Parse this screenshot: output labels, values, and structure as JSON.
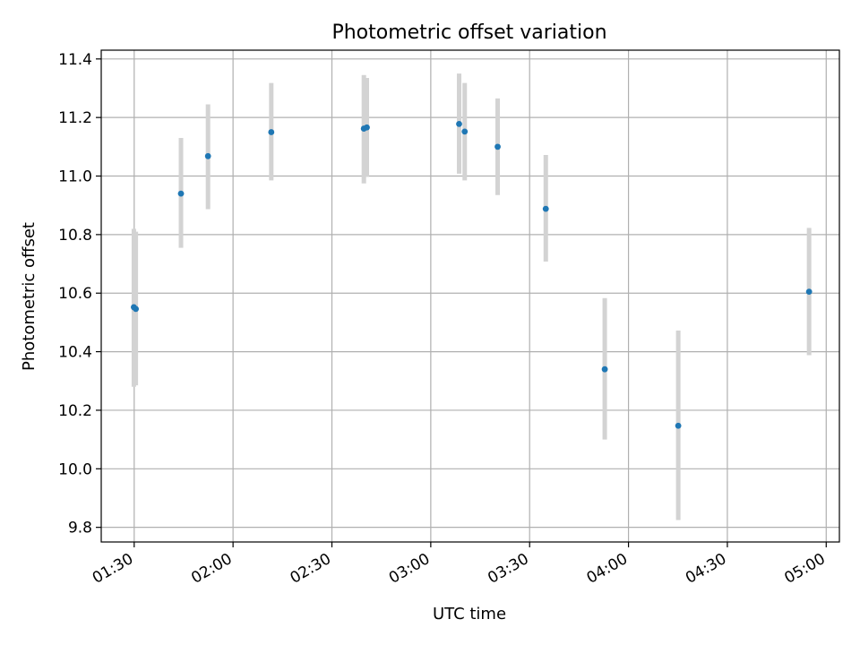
{
  "chart_data": {
    "type": "scatter",
    "title": "Photometric offset variation",
    "xlabel": "UTC time",
    "ylabel": "Photometric offset",
    "x_axis": {
      "kind": "time",
      "range": [
        "01:20",
        "05:04"
      ],
      "ticks": [
        "01:30",
        "02:00",
        "02:30",
        "03:00",
        "03:30",
        "04:00",
        "04:30",
        "05:00"
      ]
    },
    "y_axis": {
      "range": [
        9.75,
        11.43
      ],
      "ticks": [
        "9.8",
        "10.0",
        "10.2",
        "10.4",
        "10.6",
        "10.8",
        "11.0",
        "11.2",
        "11.4"
      ]
    },
    "grid": true,
    "series": [
      {
        "marker_color": "#1f77b4",
        "errorbar_color": "#d3d3d3",
        "points": [
          {
            "x": "01:29.9",
            "y": 10.552,
            "err_low": 10.28,
            "err_high": 10.82
          },
          {
            "x": "01:30.5",
            "y": 10.546,
            "err_low": 10.285,
            "err_high": 10.81
          },
          {
            "x": "01:44.2",
            "y": 10.94,
            "err_low": 10.755,
            "err_high": 11.13
          },
          {
            "x": "01:52.4",
            "y": 11.068,
            "err_low": 10.887,
            "err_high": 11.245
          },
          {
            "x": "02:11.6",
            "y": 11.15,
            "err_low": 10.985,
            "err_high": 11.318
          },
          {
            "x": "02:39.7",
            "y": 11.162,
            "err_low": 10.975,
            "err_high": 11.345
          },
          {
            "x": "02:40.6",
            "y": 11.166,
            "err_low": 10.997,
            "err_high": 11.335
          },
          {
            "x": "03:08.6",
            "y": 11.178,
            "err_low": 11.008,
            "err_high": 11.35
          },
          {
            "x": "03:10.3",
            "y": 11.152,
            "err_low": 10.985,
            "err_high": 11.318
          },
          {
            "x": "03:20.3",
            "y": 11.1,
            "err_low": 10.935,
            "err_high": 11.265
          },
          {
            "x": "03:34.9",
            "y": 10.888,
            "err_low": 10.708,
            "err_high": 11.072
          },
          {
            "x": "03:52.8",
            "y": 10.34,
            "err_low": 10.1,
            "err_high": 10.583
          },
          {
            "x": "04:15.1",
            "y": 10.147,
            "err_low": 9.825,
            "err_high": 10.472
          },
          {
            "x": "04:54.8",
            "y": 10.605,
            "err_low": 10.388,
            "err_high": 10.823
          }
        ]
      }
    ]
  }
}
